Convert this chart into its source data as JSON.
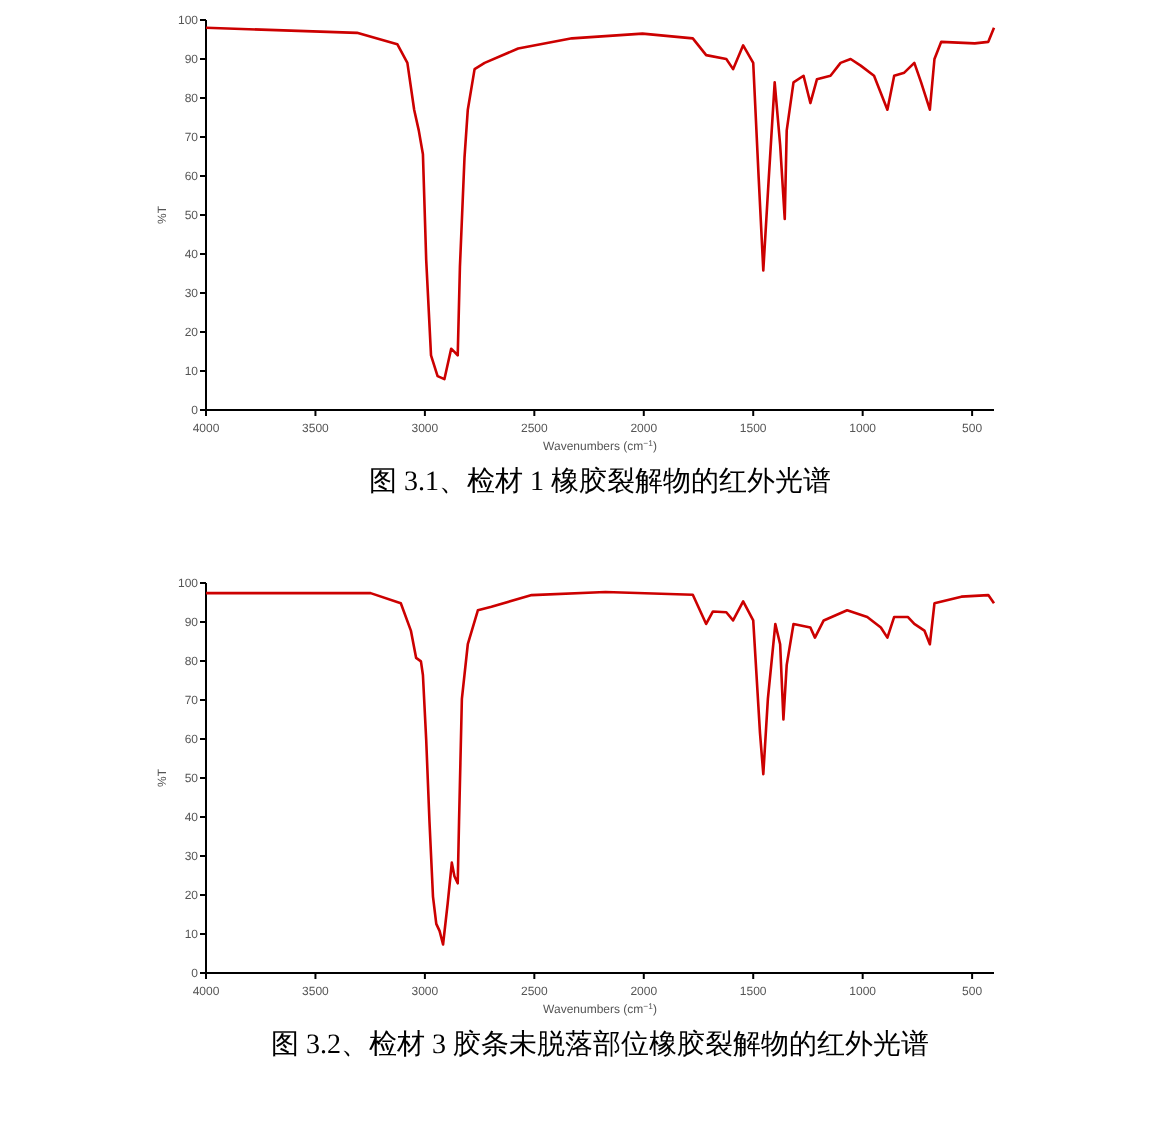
{
  "chart_data": [
    {
      "type": "line",
      "title": "图 3.1、检材 1 橡胶裂解物的红外光谱",
      "xlabel": "Wavenumbers (cm$^{−1}$)",
      "ylabel": "%T",
      "xlim": [
        4000,
        400
      ],
      "ylim": [
        0,
        100
      ],
      "xticks": [
        4000,
        3500,
        3000,
        2500,
        2000,
        1500,
        1000,
        500
      ],
      "yticks": [
        0,
        10,
        20,
        30,
        40,
        50,
        60,
        70,
        80,
        90,
        100
      ],
      "grid": false,
      "series": [
        {
          "color": "#cc0000",
          "x": [
            4000,
            3310,
            3126,
            3080,
            3049,
            3028,
            3009,
            2994,
            2972,
            2942,
            2911,
            2880,
            2865,
            2850,
            2840,
            2819,
            2804,
            2773,
            2727,
            2574,
            2328,
            2006,
            1776,
            1715,
            1623,
            1592,
            1546,
            1500,
            1475,
            1454,
            1429,
            1402,
            1377,
            1356,
            1347,
            1316,
            1270,
            1239,
            1209,
            1147,
            1101,
            1055,
            1009,
            948,
            887,
            856,
            810,
            764,
            733,
            693,
            672,
            641,
            488,
            426,
            400
          ],
          "values": [
            98,
            96.7,
            93.8,
            89,
            77,
            71.7,
            65.6,
            38.5,
            14,
            8.7,
            7.9,
            15.7,
            14.9,
            14,
            36.7,
            64.7,
            77,
            87.4,
            89,
            92.7,
            95.3,
            96.5,
            95.3,
            91,
            90,
            87.4,
            93.5,
            89,
            59.4,
            35.8,
            59.4,
            84,
            68,
            49,
            71.7,
            84,
            85.7,
            78.7,
            84.8,
            85.7,
            89,
            90,
            88.3,
            85.7,
            77,
            85.7,
            86.5,
            89,
            84,
            77,
            90,
            94.4,
            94,
            94.4,
            98
          ]
        }
      ]
    },
    {
      "type": "line",
      "title": "图 3.2、检材 3 胶条未脱落部位橡胶裂解物的红外光谱",
      "xlabel": "Wavenumbers (cm$^{−1}$)",
      "ylabel": "%T",
      "xlim": [
        4000,
        400
      ],
      "ylim": [
        0,
        100
      ],
      "xticks": [
        4000,
        3500,
        3000,
        2500,
        2000,
        1500,
        1000,
        500
      ],
      "yticks": [
        0,
        10,
        20,
        30,
        40,
        50,
        60,
        70,
        80,
        90,
        100
      ],
      "grid": false,
      "series": [
        {
          "color": "#cc0000",
          "x": [
            4000,
            3248,
            3110,
            3064,
            3040,
            3018,
            3009,
            2994,
            2979,
            2963,
            2948,
            2933,
            2917,
            2896,
            2877,
            2865,
            2850,
            2844,
            2831,
            2804,
            2758,
            2696,
            2512,
            2175,
            1776,
            1715,
            1684,
            1623,
            1592,
            1546,
            1500,
            1469,
            1454,
            1433,
            1399,
            1377,
            1362,
            1347,
            1316,
            1239,
            1218,
            1178,
            1071,
            979,
            917,
            887,
            856,
            794,
            764,
            718,
            693,
            672,
            549,
            426,
            400
          ],
          "values": [
            97.4,
            97.4,
            94.8,
            87.8,
            80.8,
            79.9,
            76.4,
            59.8,
            38.8,
            19.6,
            12.6,
            10.8,
            7.3,
            17.8,
            28.3,
            24.8,
            23,
            38.8,
            70.3,
            84.3,
            93,
            93.9,
            96.9,
            97.7,
            97,
            89.5,
            92.7,
            92.5,
            90.4,
            95.3,
            90.4,
            61.5,
            51,
            70.3,
            89.5,
            84.3,
            65,
            79,
            89.5,
            88.6,
            86,
            90.4,
            93,
            91.3,
            88.6,
            86,
            91.3,
            91.3,
            89.5,
            87.8,
            84.3,
            94.8,
            96.5,
            96.9,
            94.8
          ]
        }
      ]
    }
  ]
}
